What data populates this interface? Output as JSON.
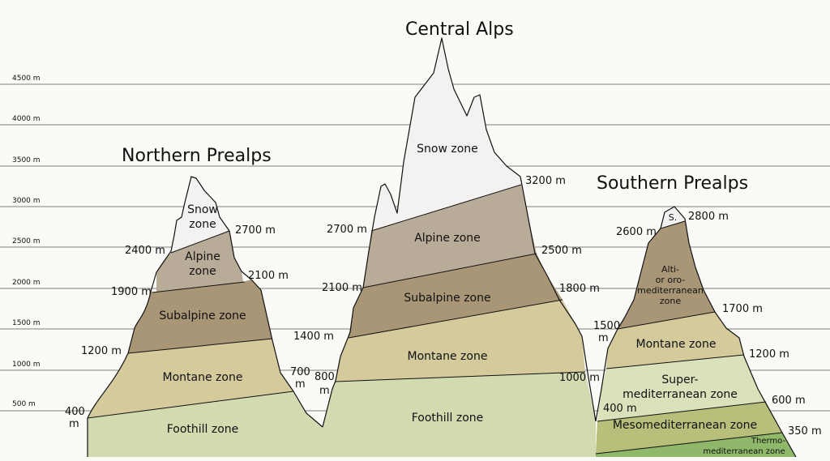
{
  "axis": {
    "ticks": [
      {
        "label": "500 m",
        "value": 500
      },
      {
        "label": "1000 m",
        "value": 1000
      },
      {
        "label": "1500 m",
        "value": 1500
      },
      {
        "label": "2000 m",
        "value": 2000
      },
      {
        "label": "2500 m",
        "value": 2500
      },
      {
        "label": "3000 m",
        "value": 3000
      },
      {
        "label": "3500 m",
        "value": 3500
      },
      {
        "label": "4000 m",
        "value": 4000
      },
      {
        "label": "4500 m",
        "value": 4500
      }
    ]
  },
  "colors": {
    "snow": "#f3f2f1",
    "alpine": "#b8ab97",
    "subalpine": "#a89677",
    "montane": "#d4ca9c",
    "foothill": "#d2dab0",
    "supermed": "#d9e2ba",
    "mesomed": "#b7bf7b",
    "thermomed": "#8fb86a",
    "grid": "#555555"
  },
  "northern": {
    "title": "Northern Prealps",
    "zones": {
      "snow": "Snow zone",
      "alpine": "Alpine zone",
      "subalpine": "Subalpine zone",
      "montane": "Montane zone",
      "foothill": "Foothill zone"
    },
    "labels": {
      "l2400": "2400 m",
      "l2700": "2700 m",
      "l1900": "1900 m",
      "l2100": "2100 m",
      "l1200": "1200 m",
      "l1400": "1400 m",
      "l400": "400 m",
      "l700": "700 m"
    }
  },
  "central": {
    "title": "Central Alps",
    "zones": {
      "snow": "Snow zone",
      "alpine": "Alpine zone",
      "subalpine": "Subalpine zone",
      "montane": "Montane zone",
      "foothill": "Foothill zone"
    },
    "labels": {
      "l3200": "3200 m",
      "l2700": "2700 m",
      "l2500": "2500 m",
      "l2100": "2100 m",
      "l1800": "1800 m",
      "l1000": "1000 m",
      "l800": "800 m"
    }
  },
  "southern": {
    "title": "Southern Prealps",
    "zones": {
      "snow": "S.",
      "oro": "Alti- or oro- mediterranean zone",
      "montane": "Montane zone",
      "supermed": "Super- mediterranean zone",
      "mesomed": "Mesomediterranean zone",
      "thermomed": "Thermo- mediterranean zone"
    },
    "labels": {
      "l2800": "2800 m",
      "l2600": "2600 m",
      "l1700": "1700 m",
      "l1500": "1500 m",
      "l1200": "1200 m",
      "l600": "600 m",
      "l400": "400 m",
      "l350": "350 m"
    }
  }
}
